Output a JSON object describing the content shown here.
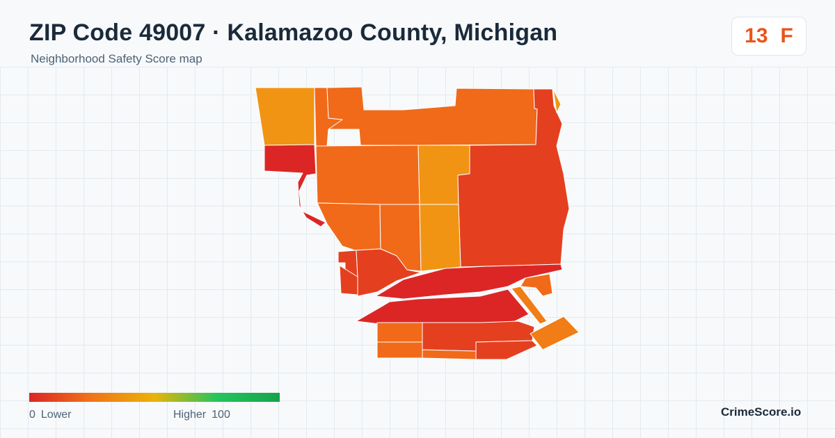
{
  "header": {
    "title": "ZIP Code 49007 · Kalamazoo County, Michigan",
    "subtitle": "Neighborhood Safety Score map"
  },
  "score": {
    "value": "13",
    "grade": "F",
    "color": "#e8541c"
  },
  "legend": {
    "min_value": "0",
    "min_label": "Lower",
    "max_label": "Higher",
    "max_value": "100",
    "gradient_colors": [
      "#dc2626",
      "#f07418",
      "#eab308",
      "#22c55e",
      "#16a34a"
    ]
  },
  "brand": "CrimeScore.io",
  "palette": {
    "low": "#dc2626",
    "low_mid": "#e4401f",
    "mid": "#f06a1a",
    "high_mid": "#f07d16",
    "high": "#f19413"
  }
}
